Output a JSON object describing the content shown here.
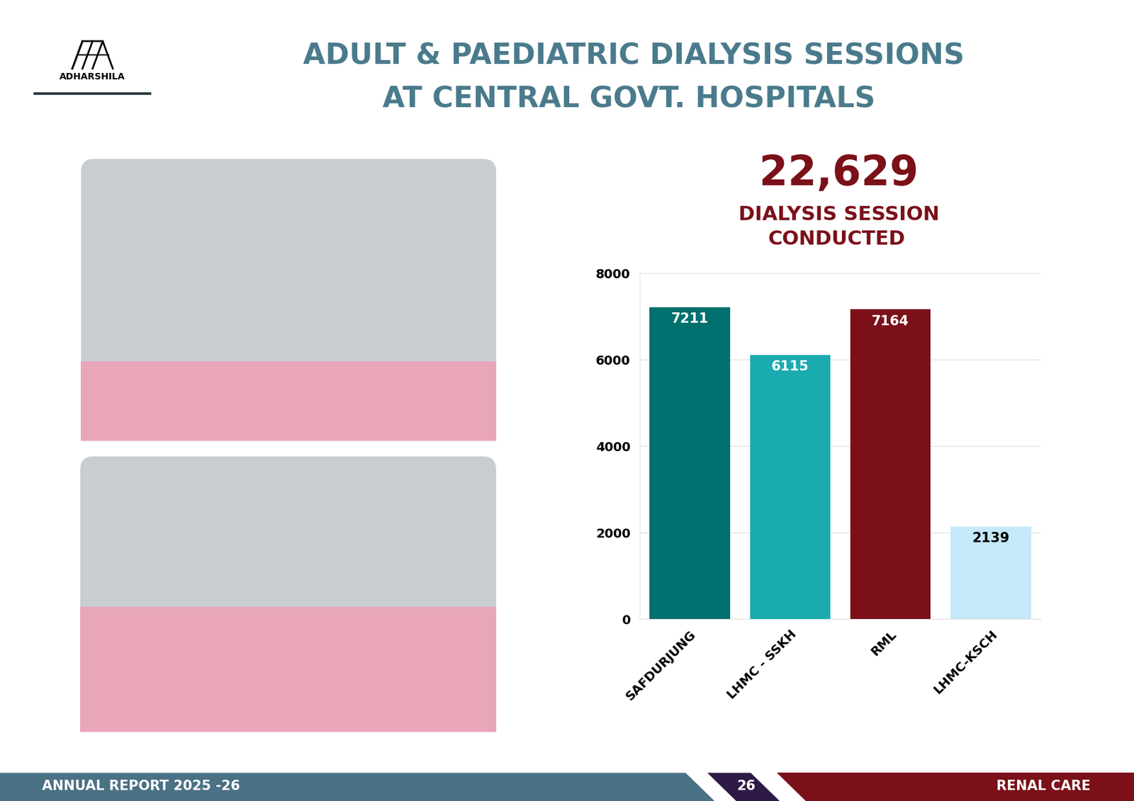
{
  "page": {
    "logo": "ADHARSHILA",
    "title": [
      "ADULT & PAEDIATRIC DIALYSIS SESSIONS",
      "AT CENTRAL GOVT. HOSPITALS"
    ],
    "highlight": "22,629",
    "highlight_caption": [
      "DIALYSIS SESSION",
      "CONDUCTED"
    ],
    "footer_left": "ANNUAL REPORT 2025 -26",
    "page_number": "26",
    "footer_right": "RENAL CARE"
  },
  "chart_data": {
    "type": "bar",
    "categories": [
      "SAFDURJUNG",
      "LHMC - SSKH",
      "RML",
      "LHMC-KSCH"
    ],
    "values": [
      7211,
      6115,
      7164,
      2139
    ],
    "colors": [
      "#00706e",
      "#1aabb0",
      "#7b1019",
      "#c5e8fb"
    ],
    "ylim": [
      0,
      8000
    ],
    "yticks": [
      0,
      2000,
      4000,
      6000,
      8000
    ],
    "grid": true,
    "data_labels": true
  }
}
